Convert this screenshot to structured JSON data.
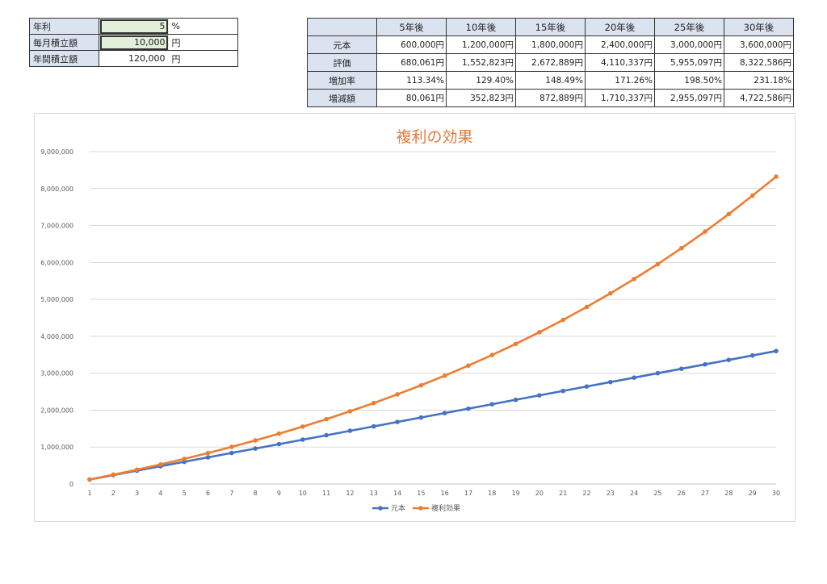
{
  "inputs": {
    "rows": [
      {
        "label": "年利",
        "value": "5",
        "unit": "%"
      },
      {
        "label": "毎月積立額",
        "value": "10,000",
        "unit": "円"
      },
      {
        "label": "年間積立額",
        "value": "120,000",
        "unit": "円"
      }
    ]
  },
  "summary": {
    "columns": [
      "5年後",
      "10年後",
      "15年後",
      "20年後",
      "25年後",
      "30年後"
    ],
    "rows": [
      {
        "label": "元本",
        "cells": [
          "600,000円",
          "1,200,000円",
          "1,800,000円",
          "2,400,000円",
          "3,000,000円",
          "3,600,000円"
        ]
      },
      {
        "label": "評価",
        "cells": [
          "680,061円",
          "1,552,823円",
          "2,672,889円",
          "4,110,337円",
          "5,955,097円",
          "8,322,586円"
        ]
      },
      {
        "label": "増加率",
        "cells": [
          "113.34%",
          "129.40%",
          "148.49%",
          "171.26%",
          "198.50%",
          "231.18%"
        ]
      },
      {
        "label": "増減額",
        "cells": [
          "80,061円",
          "352,823円",
          "872,889円",
          "1,710,337円",
          "2,955,097円",
          "4,722,586円"
        ]
      }
    ]
  },
  "colors": {
    "principal": "#4472c4",
    "compound": "#ed7d31",
    "title": "#e07b39",
    "header_fill": "#dce3f0",
    "input_fill": "#e2efda"
  },
  "chart_data": {
    "type": "line",
    "title": "複利の効果",
    "xlabel": "",
    "ylabel": "",
    "x": [
      1,
      2,
      3,
      4,
      5,
      6,
      7,
      8,
      9,
      10,
      11,
      12,
      13,
      14,
      15,
      16,
      17,
      18,
      19,
      20,
      21,
      22,
      23,
      24,
      25,
      26,
      27,
      28,
      29,
      30
    ],
    "ylim": [
      0,
      9000000
    ],
    "yticks": [
      0,
      1000000,
      2000000,
      3000000,
      4000000,
      5000000,
      6000000,
      7000000,
      8000000,
      9000000
    ],
    "ytick_labels": [
      "0",
      "1,000,000",
      "2,000,000",
      "3,000,000",
      "4,000,000",
      "5,000,000",
      "6,000,000",
      "7,000,000",
      "8,000,000",
      "9,000,000"
    ],
    "grid": true,
    "legend": "bottom",
    "series": [
      {
        "name": "元本",
        "color": "#4472c4",
        "values": [
          120000,
          240000,
          360000,
          480000,
          600000,
          720000,
          840000,
          960000,
          1080000,
          1200000,
          1320000,
          1440000,
          1560000,
          1680000,
          1800000,
          1920000,
          2040000,
          2160000,
          2280000,
          2400000,
          2520000,
          2640000,
          2760000,
          2880000,
          3000000,
          3120000,
          3240000,
          3360000,
          3480000,
          3600000
        ]
      },
      {
        "name": "複利効果",
        "color": "#ed7d31",
        "values": [
          122700,
          251600,
          387000,
          529300,
          680100,
          838600,
          1005100,
          1180100,
          1364100,
          1552800,
          1755400,
          1968300,
          2192100,
          2427300,
          2672900,
          2932800,
          3205900,
          3493000,
          3794700,
          4110300,
          4444000,
          4794700,
          5163200,
          5550500,
          5955100,
          6384800,
          6836100,
          7310500,
          7809000,
          8322600
        ]
      }
    ]
  }
}
